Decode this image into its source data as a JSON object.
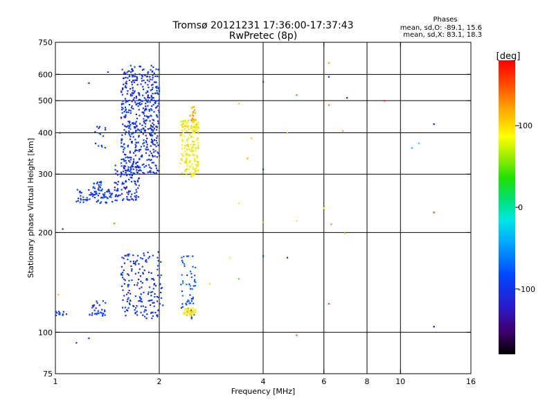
{
  "header": {
    "title_line1": "Tromsø 20121231 17:36:00-17:37:43",
    "title_line2": "RwPretec (8p)"
  },
  "stats": {
    "title": "Phases",
    "line_o": "mean, sd,O: -89.1, 15.6",
    "line_x": "mean, sd,X:  83.1, 18.3"
  },
  "chart_data": {
    "type": "scatter",
    "xlabel": "Frequency [MHz]",
    "ylabel": "Stationary phase Virtual Height [km]",
    "x_scale": "log2",
    "y_scale": "log",
    "xlim": [
      1,
      16
    ],
    "ylim": [
      75,
      750
    ],
    "x_ticks": [
      1,
      2,
      4,
      6,
      8,
      10,
      16
    ],
    "x_tick_labels": [
      "1",
      "2",
      "4",
      "6",
      "8",
      "10",
      "16"
    ],
    "x_major_lines": [
      2,
      4
    ],
    "x_minor_lines": [
      6,
      8,
      10
    ],
    "y_ticks": [
      75,
      100,
      200,
      300,
      400,
      500,
      600,
      750
    ],
    "y_tick_labels": [
      "75",
      "100",
      "200",
      "300",
      "400",
      "500",
      "600",
      "750"
    ],
    "grid": true,
    "colorbar": {
      "label": "[deg]",
      "range": [
        -180,
        180
      ],
      "tick_labels": [
        "100",
        "0",
        "-100"
      ],
      "tick_values": [
        100,
        0,
        -100
      ]
    },
    "clusters": [
      {
        "name": "O trace main",
        "f": [
          1.55,
          2.0
        ],
        "h": [
          300,
          640
        ],
        "phase": -100,
        "count": 520
      },
      {
        "name": "O trace curve",
        "f": [
          1.48,
          1.75
        ],
        "h": [
          250,
          320
        ],
        "phase": -100,
        "count": 110
      },
      {
        "name": "O trace base",
        "f": [
          1.15,
          1.5
        ],
        "h": [
          245,
          270
        ],
        "phase": -95,
        "count": 70
      },
      {
        "name": "O trace low",
        "f": [
          1.28,
          1.38
        ],
        "h": [
          260,
          285
        ],
        "phase": -90,
        "count": 25
      },
      {
        "name": "O trace mid",
        "f": [
          1.3,
          1.4
        ],
        "h": [
          360,
          420
        ],
        "phase": -95,
        "count": 14
      },
      {
        "name": "X trace",
        "f": [
          2.3,
          2.6
        ],
        "h": [
          295,
          440
        ],
        "phase": 90,
        "count": 190
      },
      {
        "name": "X trace top",
        "f": [
          2.45,
          2.55
        ],
        "h": [
          430,
          480
        ],
        "phase": 120,
        "count": 20
      },
      {
        "name": "E region",
        "f": [
          1.55,
          2.05
        ],
        "h": [
          110,
          175
        ],
        "phase": -100,
        "count": 180
      },
      {
        "name": "E region X",
        "f": [
          2.3,
          2.55
        ],
        "h": [
          110,
          170
        ],
        "phase": -80,
        "count": 55
      },
      {
        "name": "Es",
        "f": [
          2.35,
          2.55
        ],
        "h": [
          112,
          118
        ],
        "phase": 95,
        "count": 35
      },
      {
        "name": "E low",
        "f": [
          1.25,
          1.4
        ],
        "h": [
          112,
          125
        ],
        "phase": -100,
        "count": 30
      },
      {
        "name": "E edge",
        "f": [
          1.0,
          1.08
        ],
        "h": [
          112,
          116
        ],
        "phase": -100,
        "count": 12
      }
    ],
    "points": [
      {
        "f": 1.05,
        "h": 205,
        "phase": -110
      },
      {
        "f": 1.42,
        "h": 610,
        "phase": -100
      },
      {
        "f": 1.25,
        "h": 565,
        "phase": -120
      },
      {
        "f": 1.03,
        "h": 400,
        "phase": -90
      },
      {
        "f": 1.15,
        "h": 93,
        "phase": -100
      },
      {
        "f": 1.25,
        "h": 96,
        "phase": -110
      },
      {
        "f": 4.0,
        "h": 570,
        "phase": -110
      },
      {
        "f": 4.0,
        "h": 310,
        "phase": -100
      },
      {
        "f": 4.0,
        "h": 170,
        "phase": -100
      },
      {
        "f": 4.7,
        "h": 168,
        "phase": -110
      },
      {
        "f": 5.0,
        "h": 520,
        "phase": 30
      },
      {
        "f": 4.7,
        "h": 400,
        "phase": 110
      },
      {
        "f": 3.4,
        "h": 490,
        "phase": 110
      },
      {
        "f": 3.7,
        "h": 385,
        "phase": 110
      },
      {
        "f": 3.6,
        "h": 335,
        "phase": 120
      },
      {
        "f": 3.4,
        "h": 245,
        "phase": 80
      },
      {
        "f": 4.0,
        "h": 215,
        "phase": 60
      },
      {
        "f": 5.0,
        "h": 217,
        "phase": 90
      },
      {
        "f": 3.2,
        "h": 168,
        "phase": 80
      },
      {
        "f": 3.4,
        "h": 145,
        "phase": 50
      },
      {
        "f": 2.8,
        "h": 140,
        "phase": 100
      },
      {
        "f": 1.02,
        "h": 130,
        "phase": 110
      },
      {
        "f": 1.48,
        "h": 213,
        "phase": 40
      },
      {
        "f": 6.2,
        "h": 650,
        "phase": 120
      },
      {
        "f": 6.2,
        "h": 590,
        "phase": -100
      },
      {
        "f": 6.2,
        "h": 485,
        "phase": 140
      },
      {
        "f": 6.8,
        "h": 405,
        "phase": 120
      },
      {
        "f": 6.0,
        "h": 237,
        "phase": 90
      },
      {
        "f": 6.3,
        "h": 212,
        "phase": 130
      },
      {
        "f": 6.9,
        "h": 199,
        "phase": 100
      },
      {
        "f": 6.2,
        "h": 122,
        "phase": 150
      },
      {
        "f": 7.0,
        "h": 510,
        "phase": -130
      },
      {
        "f": 9.0,
        "h": 500,
        "phase": 170
      },
      {
        "f": 12.5,
        "h": 425,
        "phase": -140
      },
      {
        "f": 10.8,
        "h": 360,
        "phase": -30
      },
      {
        "f": 11.3,
        "h": 372,
        "phase": -20
      },
      {
        "f": 12.5,
        "h": 230,
        "phase": 160
      },
      {
        "f": 12.5,
        "h": 104,
        "phase": -160
      },
      {
        "f": 5.0,
        "h": 98,
        "phase": 150
      }
    ]
  }
}
